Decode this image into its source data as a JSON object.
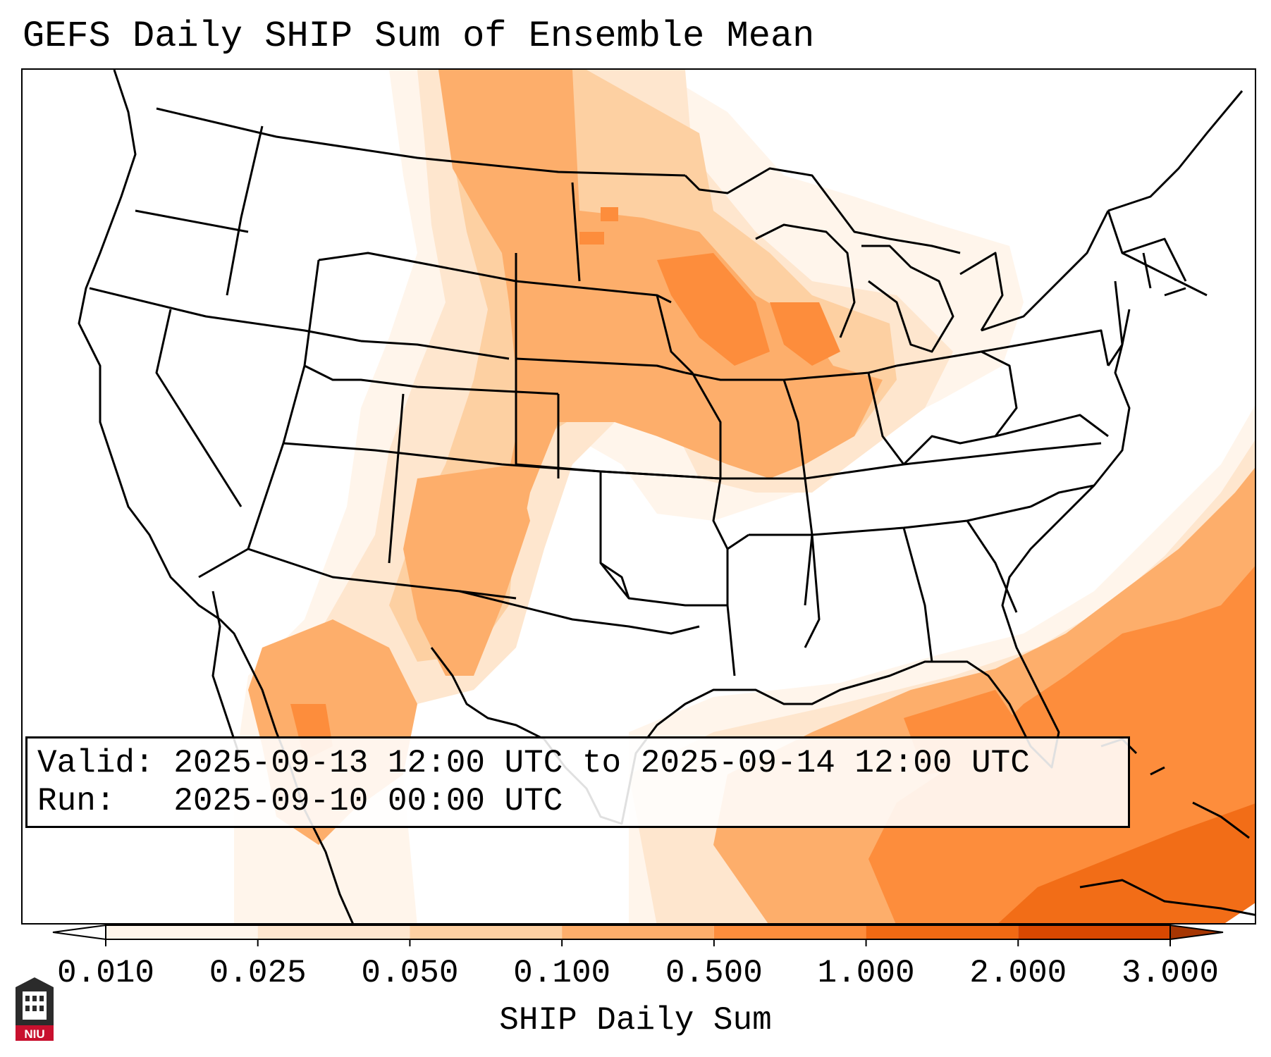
{
  "title": "GEFS Daily SHIP Sum of Ensemble Mean",
  "info": {
    "valid_label": "Valid:",
    "valid_value": "2025-09-13 12:00 UTC to 2025-09-14 12:00 UTC",
    "run_label": "Run:",
    "run_value": "2025-09-10 00:00 UTC"
  },
  "colorbar": {
    "label": "SHIP Daily Sum",
    "ticks": [
      "0.010",
      "0.025",
      "0.050",
      "0.100",
      "0.500",
      "1.000",
      "2.000",
      "3.000"
    ],
    "colors": [
      "#fff5eb",
      "#fee6ce",
      "#fdd0a2",
      "#fdae6b",
      "#fd8d3c",
      "#f16913",
      "#d94801"
    ],
    "under_color": "#ffffff",
    "over_color": "#a63603",
    "extend": "both"
  },
  "logo": {
    "text": "NIU",
    "color": "#c8102e"
  },
  "icons": {
    "logo": "niu-logo-icon"
  }
}
